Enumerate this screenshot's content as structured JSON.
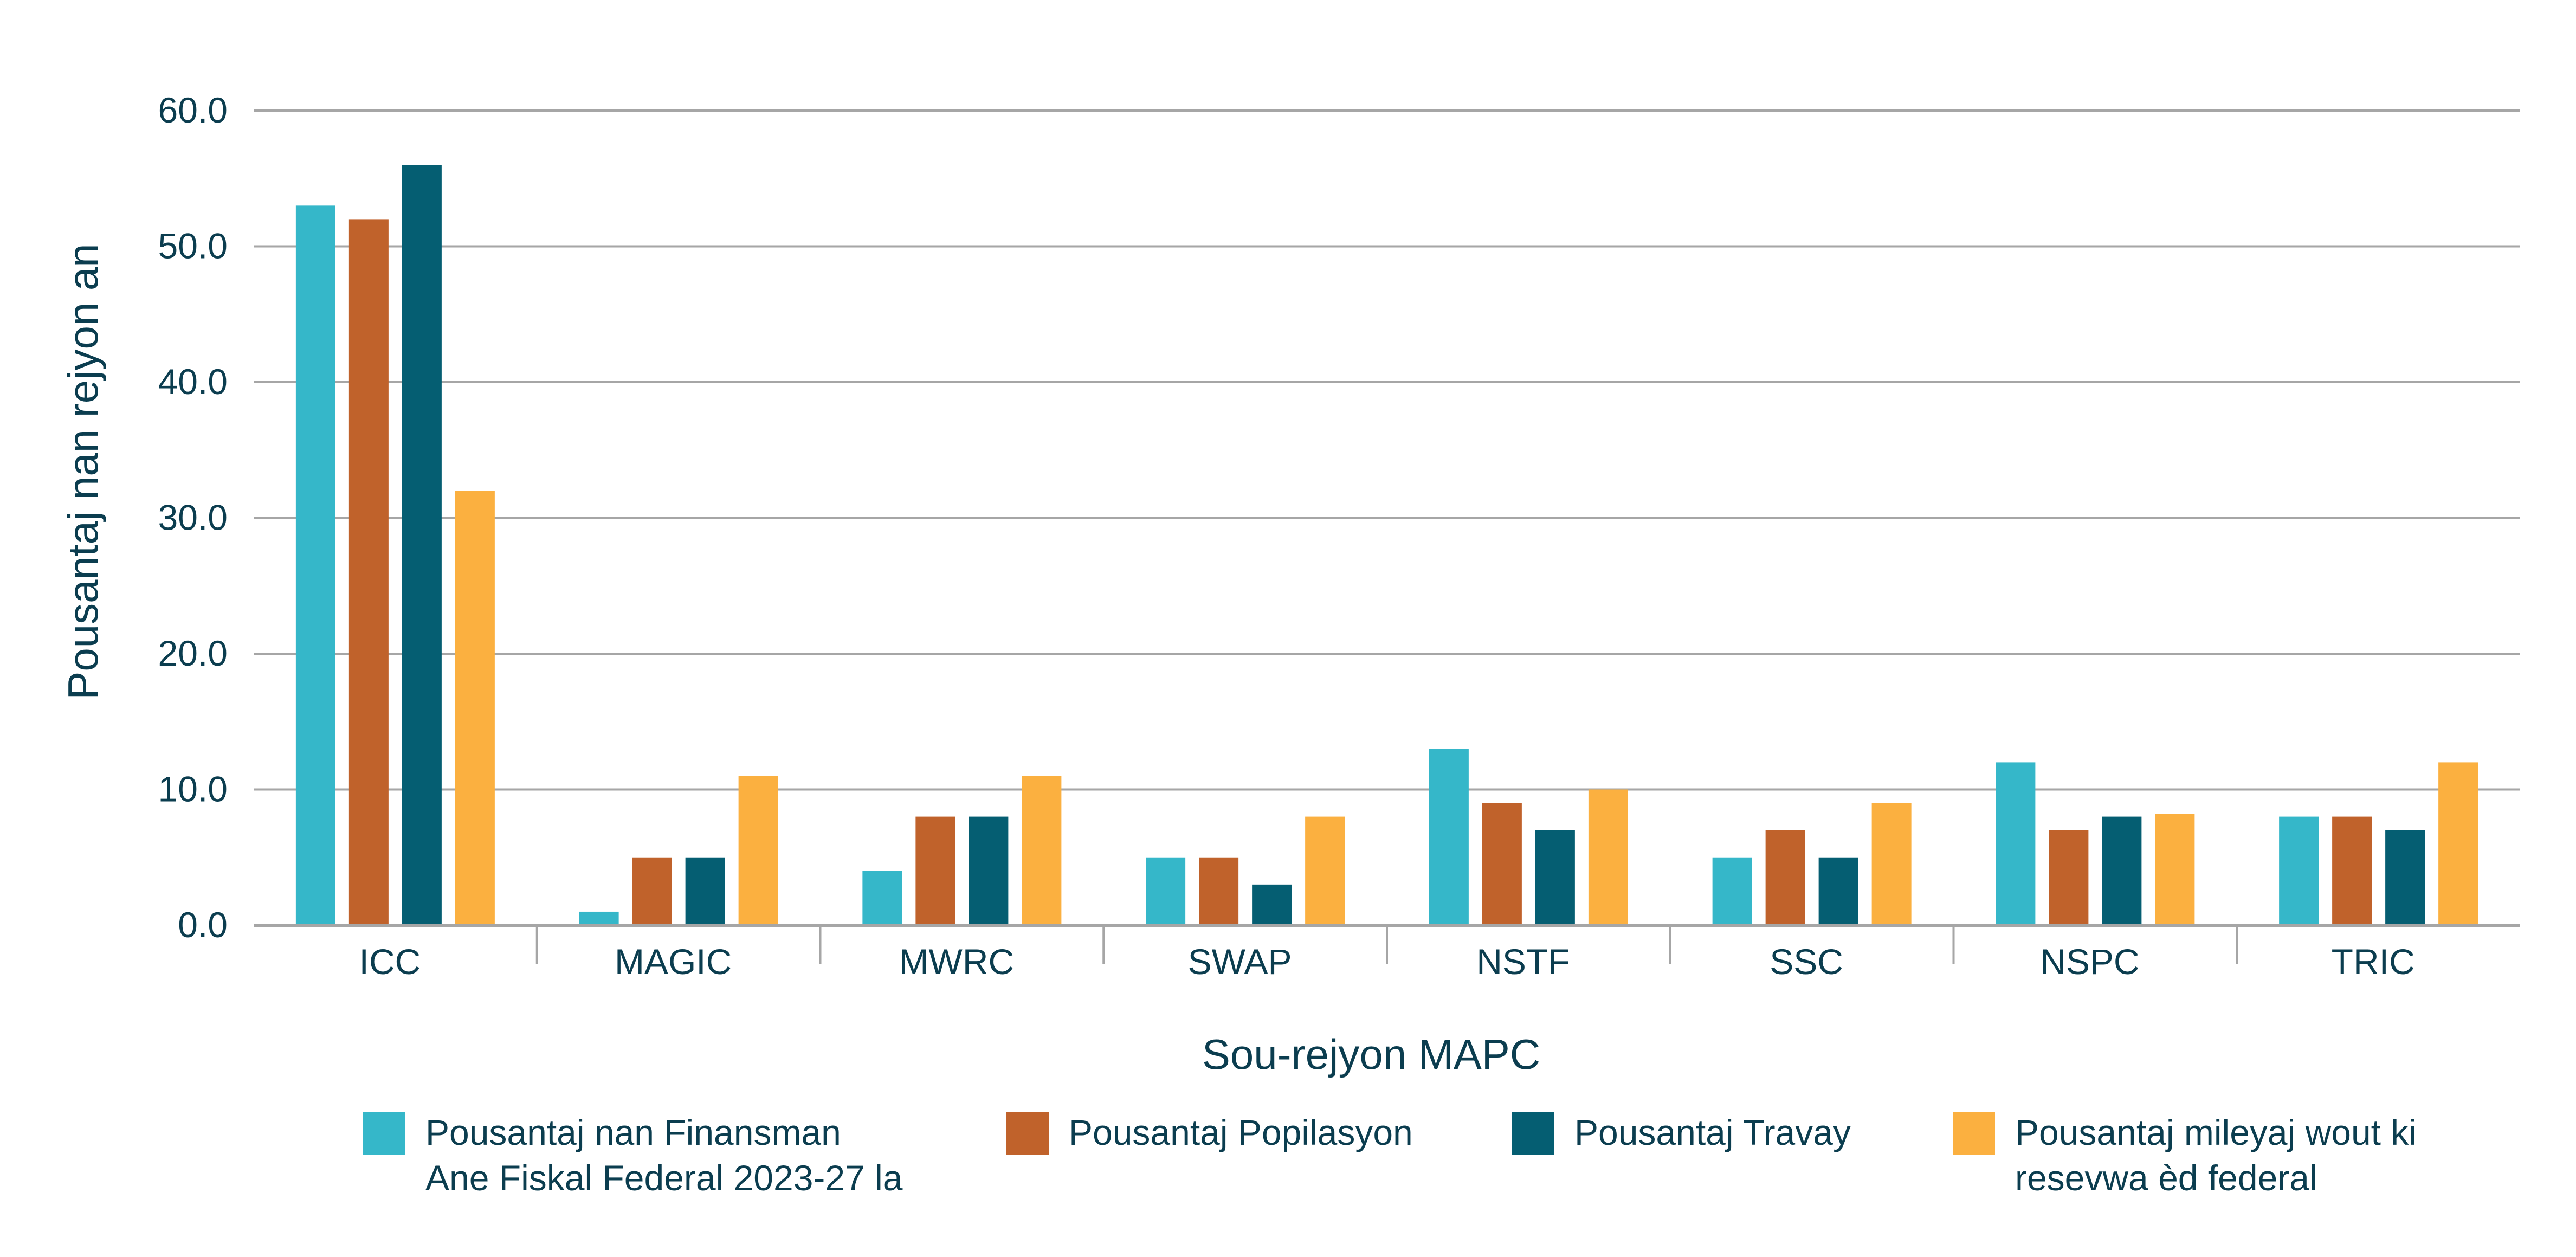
{
  "chart_data": {
    "type": "bar",
    "title": "",
    "xlabel": "Sou-rejyon MAPC",
    "ylabel": "Pousantaj nan rejyon an",
    "ylim": [
      0,
      60
    ],
    "yticks": [
      "0.0",
      "10.0",
      "20.0",
      "30.0",
      "40.0",
      "50.0",
      "60.0"
    ],
    "grid": true,
    "legend_position": "bottom",
    "categories": [
      "ICC",
      "MAGIC",
      "MWRC",
      "SWAP",
      "NSTF",
      "SSC",
      "NSPC",
      "TRIC"
    ],
    "series": [
      {
        "name": "Pousantaj nan Finansman Ane Fiskal Federal 2023-27 la",
        "legend_lines": [
          "Pousantaj nan Finansman",
          "Ane Fiskal Federal 2023-27 la"
        ],
        "color": "#35b7c9",
        "values": [
          53,
          1,
          4,
          5,
          13,
          5,
          12,
          8
        ]
      },
      {
        "name": "Pousantaj Popilasyon",
        "legend_lines": [
          "Pousantaj Popilasyon"
        ],
        "color": "#c0622b",
        "values": [
          52,
          5,
          8,
          5,
          9,
          7,
          7,
          8
        ]
      },
      {
        "name": "Pousantaj Travay",
        "legend_lines": [
          "Pousantaj Travay"
        ],
        "color": "#055e72",
        "values": [
          56,
          5,
          8,
          3,
          7,
          5,
          8,
          7
        ]
      },
      {
        "name": "Pousantaj mileyaj wout ki resevwa èd federal",
        "legend_lines": [
          "Pousantaj mileyaj wout ki",
          "resevwa èd federal"
        ],
        "color": "#fbb040",
        "values": [
          32,
          11,
          11,
          8,
          10,
          9,
          8.2,
          12
        ]
      }
    ]
  }
}
